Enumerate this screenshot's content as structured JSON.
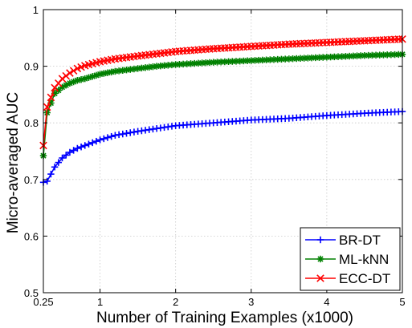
{
  "chart_data": {
    "type": "line",
    "xlabel": "Number of Training Examples (x1000)",
    "ylabel": "Micro-averaged AUC",
    "xlim": [
      0.25,
      5
    ],
    "ylim": [
      0.5,
      1
    ],
    "x_ticks": [
      0.25,
      1,
      2,
      3,
      4,
      5
    ],
    "x_tick_labels": [
      "0.25",
      "1",
      "2",
      "3",
      "4",
      "5"
    ],
    "y_ticks": [
      0.5,
      0.6,
      0.7,
      0.8,
      0.9,
      1
    ],
    "y_tick_labels": [
      "0.5",
      "0.6",
      "0.7",
      "0.8",
      "0.9",
      "1"
    ],
    "grid": true,
    "legend_position": "bottom-right",
    "x": [
      0.25,
      0.3,
      0.4,
      0.5,
      0.6,
      0.7,
      0.8,
      1.0,
      1.2,
      1.5,
      1.75,
      2.0,
      2.5,
      3.0,
      3.5,
      4.0,
      4.5,
      5.0
    ],
    "series": [
      {
        "name": "BR-DT",
        "color": "#0000ff",
        "marker": "plus",
        "values": [
          0.695,
          0.697,
          0.722,
          0.738,
          0.748,
          0.755,
          0.76,
          0.77,
          0.778,
          0.785,
          0.79,
          0.795,
          0.8,
          0.805,
          0.808,
          0.813,
          0.817,
          0.82
        ]
      },
      {
        "name": "ML-kNN",
        "color": "#008000",
        "marker": "star",
        "values": [
          0.742,
          0.818,
          0.852,
          0.863,
          0.87,
          0.875,
          0.878,
          0.886,
          0.891,
          0.896,
          0.9,
          0.903,
          0.907,
          0.91,
          0.913,
          0.916,
          0.919,
          0.921
        ]
      },
      {
        "name": "ECC-DT",
        "color": "#ff0000",
        "marker": "x",
        "values": [
          0.76,
          0.828,
          0.862,
          0.878,
          0.888,
          0.896,
          0.901,
          0.908,
          0.913,
          0.918,
          0.922,
          0.926,
          0.931,
          0.935,
          0.939,
          0.942,
          0.945,
          0.948
        ]
      }
    ]
  }
}
